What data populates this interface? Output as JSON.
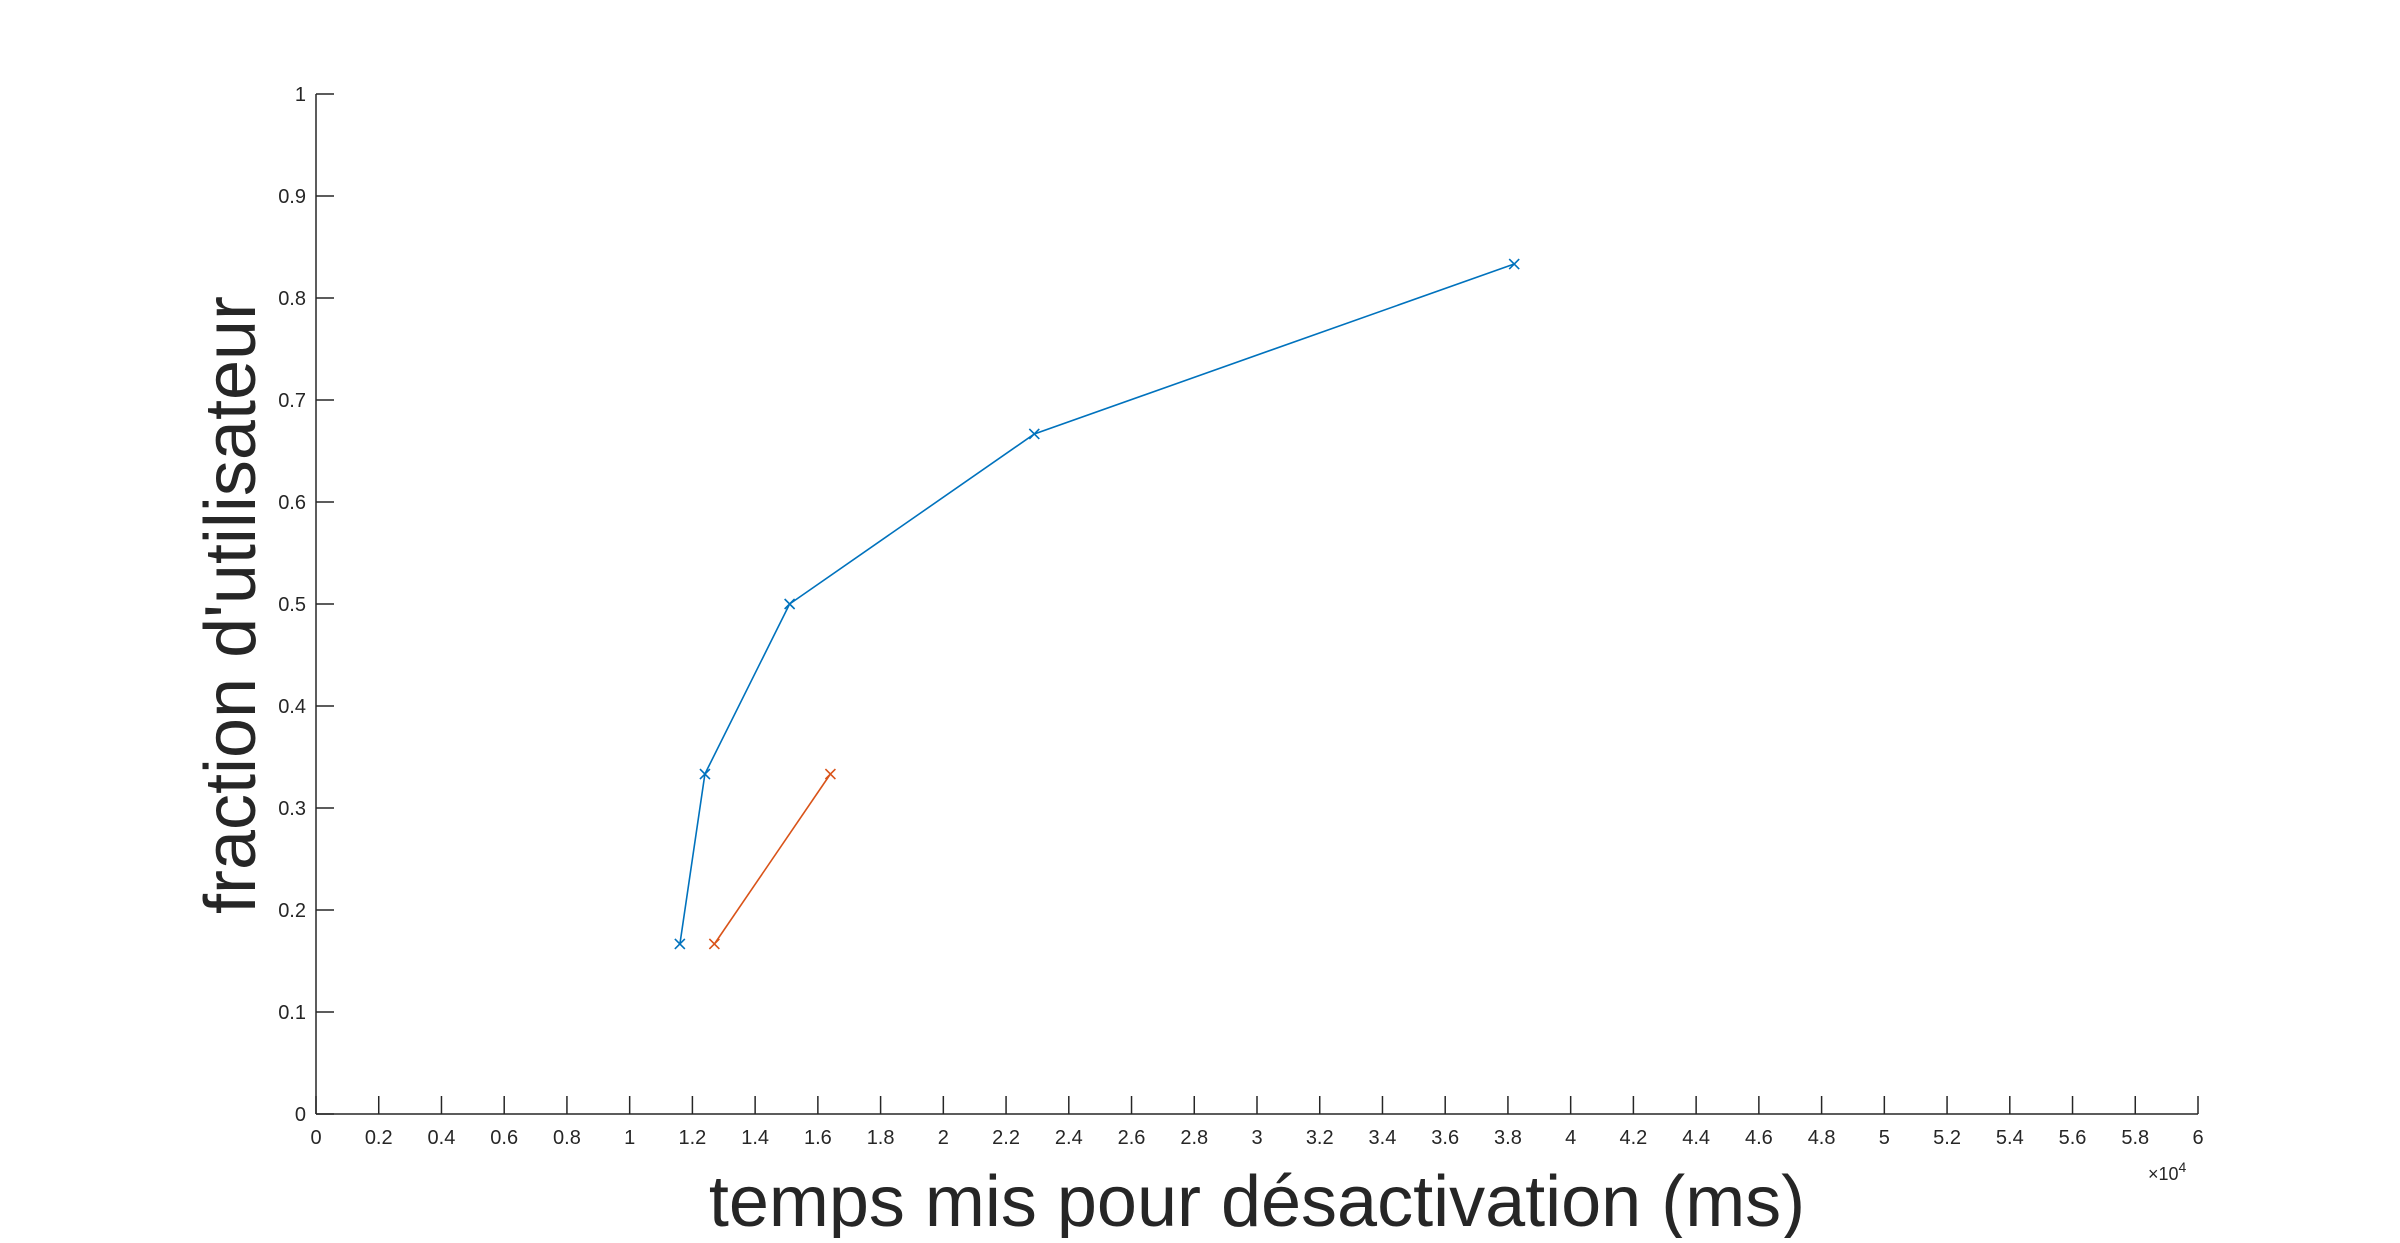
{
  "chart_data": {
    "type": "line",
    "title": "",
    "xlabel": "temps mis pour désactivation (ms)",
    "ylabel": "fraction d'utilisateur",
    "x_exponent_label": "×10",
    "x_exponent_power": "4",
    "xlim": [
      0,
      60000
    ],
    "ylim": [
      0,
      1
    ],
    "x_ticks": [
      0,
      2000,
      4000,
      6000,
      8000,
      10000,
      12000,
      14000,
      16000,
      18000,
      20000,
      22000,
      24000,
      26000,
      28000,
      30000,
      32000,
      34000,
      36000,
      38000,
      40000,
      42000,
      44000,
      46000,
      48000,
      50000,
      52000,
      54000,
      56000,
      58000,
      60000
    ],
    "x_tick_labels": [
      "0",
      "0.2",
      "0.4",
      "0.6",
      "0.8",
      "1",
      "1.2",
      "1.4",
      "1.6",
      "1.8",
      "2",
      "2.2",
      "2.4",
      "2.6",
      "2.8",
      "3",
      "3.2",
      "3.4",
      "3.6",
      "3.8",
      "4",
      "4.2",
      "4.4",
      "4.6",
      "4.8",
      "5",
      "5.2",
      "5.4",
      "5.6",
      "5.8",
      "6"
    ],
    "y_ticks": [
      0,
      0.1,
      0.2,
      0.3,
      0.4,
      0.5,
      0.6,
      0.7,
      0.8,
      0.9,
      1
    ],
    "y_tick_labels": [
      "0",
      "0.1",
      "0.2",
      "0.3",
      "0.4",
      "0.5",
      "0.6",
      "0.7",
      "0.8",
      "0.9",
      "1"
    ],
    "grid": false,
    "legend": "none",
    "series": [
      {
        "color": "#0072BD",
        "marker": "x",
        "x": [
          11600,
          12400,
          15100,
          22900,
          38200
        ],
        "y": [
          0.1667,
          0.3333,
          0.5,
          0.6667,
          0.8333
        ]
      },
      {
        "color": "#D95319",
        "marker": "x",
        "x": [
          12700,
          16400
        ],
        "y": [
          0.1667,
          0.3333
        ]
      }
    ]
  }
}
